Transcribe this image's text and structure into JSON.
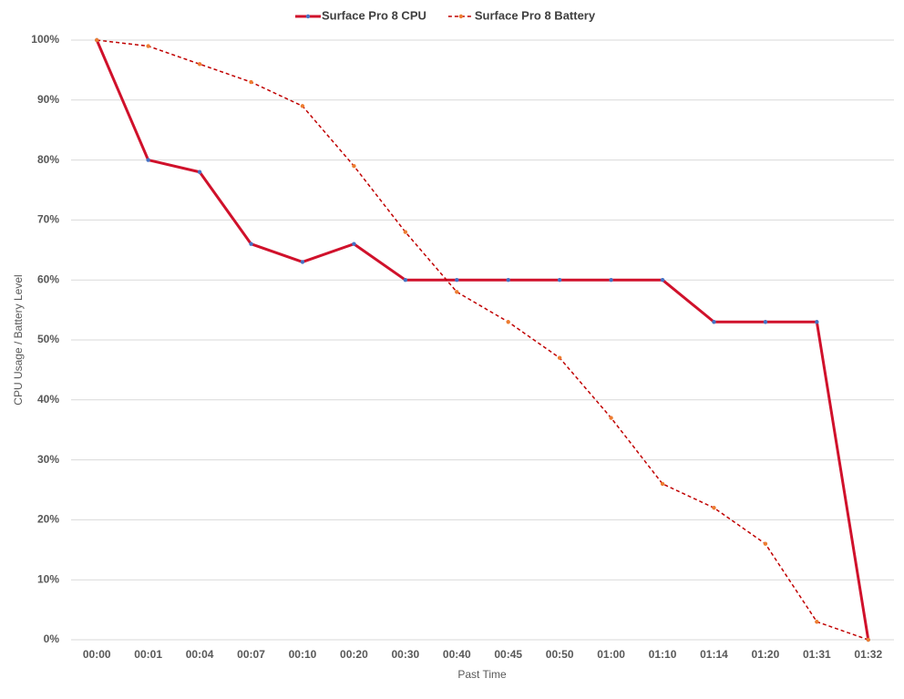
{
  "chart_data": {
    "type": "line",
    "x_label": "Past Time",
    "y_label": "CPU Usage / Battery Level",
    "categories": [
      "00:00",
      "00:01",
      "00:04",
      "00:07",
      "00:10",
      "00:20",
      "00:30",
      "00:40",
      "00:45",
      "00:50",
      "01:00",
      "01:10",
      "01:14",
      "01:20",
      "01:31",
      "01:32"
    ],
    "series": [
      {
        "name": "Surface Pro 8 CPU",
        "color": "#d0112b",
        "marker_color": "#4472c4",
        "dashed": false,
        "values": [
          100,
          80,
          78,
          66,
          63,
          66,
          60,
          60,
          60,
          60,
          60,
          60,
          53,
          53,
          53,
          0
        ]
      },
      {
        "name": "Surface Pro 8 Battery",
        "color": "#c00000",
        "marker_color": "#ed7d31",
        "dashed": true,
        "values": [
          100,
          99,
          96,
          93,
          89,
          79,
          68,
          58,
          53,
          47,
          37,
          26,
          22,
          16,
          3,
          0
        ]
      }
    ],
    "ylim": [
      0,
      100
    ],
    "yticks": [
      {
        "value": 0,
        "label": "0%"
      },
      {
        "value": 10,
        "label": "10%"
      },
      {
        "value": 20,
        "label": "20%"
      },
      {
        "value": 30,
        "label": "30%"
      },
      {
        "value": 40,
        "label": "40%"
      },
      {
        "value": 50,
        "label": "50%"
      },
      {
        "value": 60,
        "label": "60%"
      },
      {
        "value": 70,
        "label": "70%"
      },
      {
        "value": 80,
        "label": "80%"
      },
      {
        "value": 90,
        "label": "90%"
      },
      {
        "value": 100,
        "label": "100%"
      }
    ],
    "grid": true,
    "legend": "top"
  }
}
